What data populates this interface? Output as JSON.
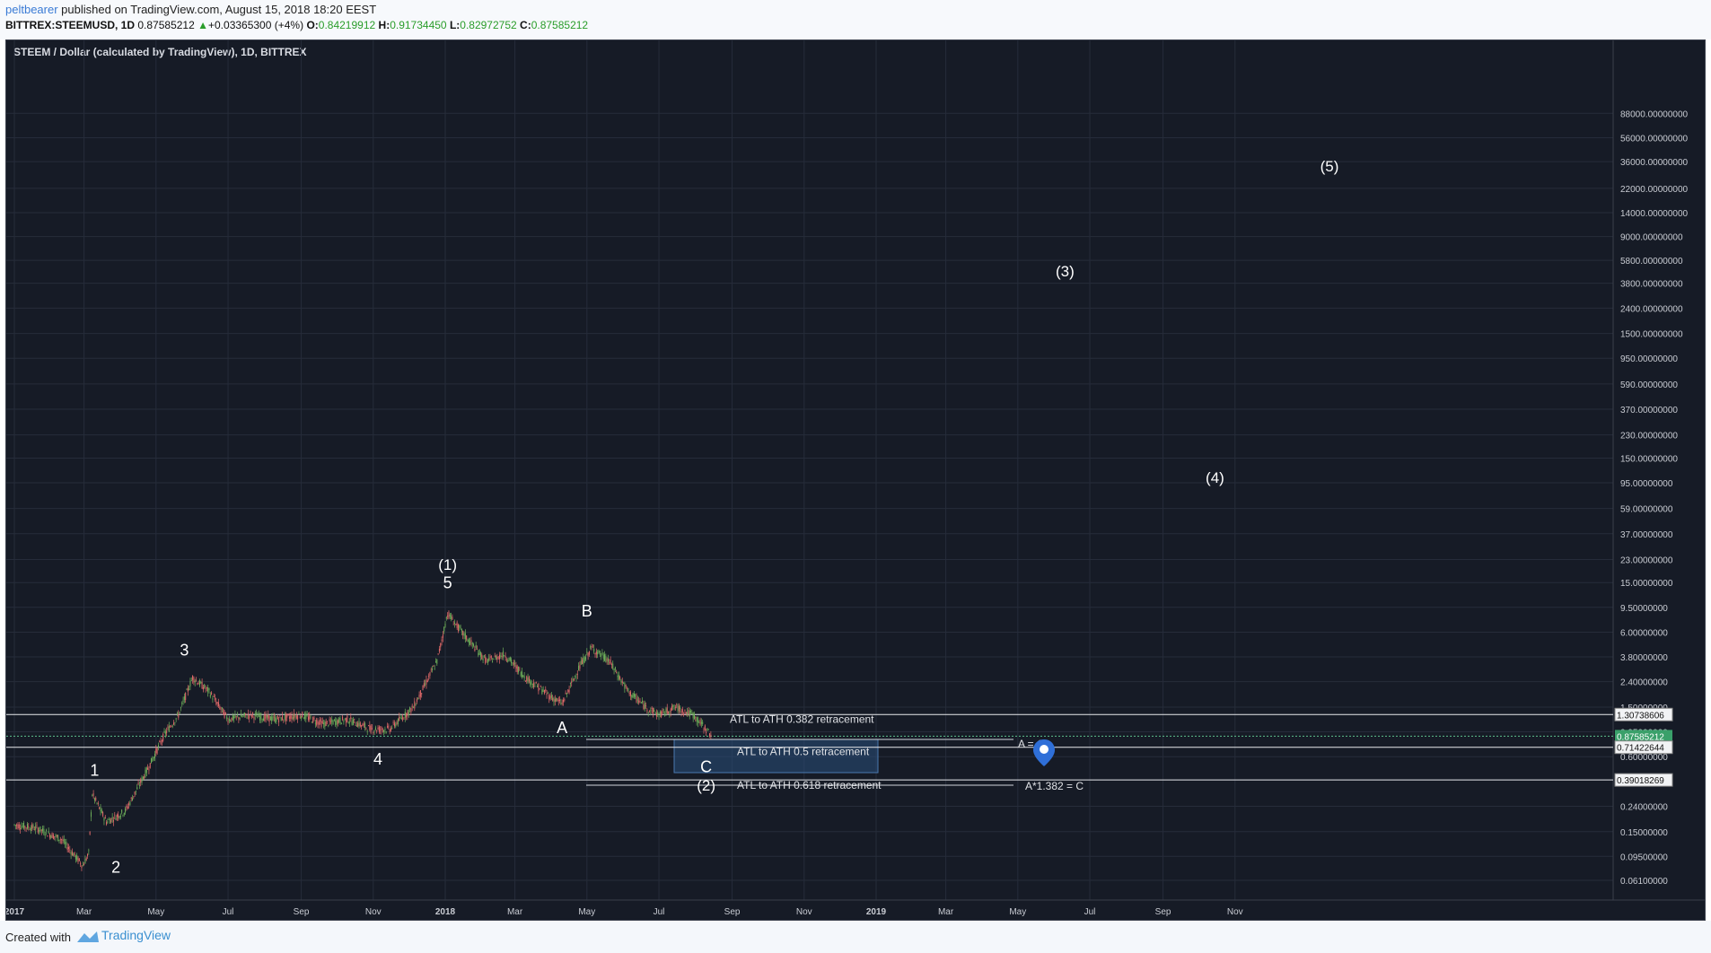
{
  "header": {
    "user": "peltbearer",
    "published": "published on TradingView.com, August 15, 2018 18:20 EEST",
    "symbol": "BITTREX:STEEMUSD, 1D",
    "last": "0.87585212",
    "change_arrow": "▲",
    "change": "+0.03365300 (+4%)",
    "o_label": "O:",
    "o": "0.84219912",
    "h_label": "H:",
    "h": "0.91734450",
    "l_label": "L:",
    "l": "0.82972752",
    "c_label": "C:",
    "c": "0.87585212"
  },
  "footer": {
    "created": "Created with",
    "brand": "TradingView"
  },
  "colors": {
    "bg": "#161b26",
    "up": "#6fb05a",
    "down": "#e26a6a",
    "grid": "#262c3a",
    "accent": "#3e7bd9"
  },
  "chart_data": {
    "type": "candlestick",
    "title": "STEEM / Dollar (calculated by TradingView), 1D, BITTREX",
    "scale": "log",
    "ylim": [
      0.05,
      90000
    ],
    "y_ticks": [
      "88000.00000000",
      "56000.00000000",
      "36000.00000000",
      "22000.00000000",
      "14000.00000000",
      "9000.00000000",
      "5800.00000000",
      "3800.00000000",
      "2400.00000000",
      "1500.00000000",
      "950.00000000",
      "590.00000000",
      "370.00000000",
      "230.00000000",
      "150.00000000",
      "95.00000000",
      "59.00000000",
      "37.00000000",
      "23.00000000",
      "15.00000000",
      "9.50000000",
      "6.00000000",
      "3.80000000",
      "2.40000000",
      "1.50000000",
      "0.95000000",
      "0.60000000",
      "0.24000000",
      "0.15000000",
      "0.09500000",
      "0.06100000"
    ],
    "x_ticks": [
      "2017",
      "Mar",
      "May",
      "Jul",
      "Sep",
      "Nov",
      "2018",
      "Mar",
      "May",
      "Jul",
      "Sep",
      "Nov",
      "2019",
      "Mar",
      "May",
      "Jul",
      "Sep",
      "Nov"
    ],
    "price_series": {
      "name": "STEEMUSD",
      "points": [
        [
          "2017-01-01",
          0.17
        ],
        [
          "2017-01-20",
          0.16
        ],
        [
          "2017-02-10",
          0.13
        ],
        [
          "2017-02-28",
          0.08
        ],
        [
          "2017-03-05",
          0.1
        ],
        [
          "2017-03-08",
          0.3
        ],
        [
          "2017-03-20",
          0.18
        ],
        [
          "2017-04-05",
          0.22
        ],
        [
          "2017-04-25",
          0.5
        ],
        [
          "2017-05-08",
          0.9
        ],
        [
          "2017-05-20",
          1.3
        ],
        [
          "2017-06-01",
          2.6
        ],
        [
          "2017-06-15",
          2.0
        ],
        [
          "2017-07-01",
          1.2
        ],
        [
          "2017-07-20",
          1.3
        ],
        [
          "2017-08-10",
          1.2
        ],
        [
          "2017-09-01",
          1.3
        ],
        [
          "2017-09-20",
          1.1
        ],
        [
          "2017-10-10",
          1.2
        ],
        [
          "2017-10-30",
          1.0
        ],
        [
          "2017-11-15",
          1.0
        ],
        [
          "2017-12-05",
          1.5
        ],
        [
          "2017-12-25",
          3.5
        ],
        [
          "2018-01-03",
          8.5
        ],
        [
          "2018-01-15",
          6.0
        ],
        [
          "2018-02-05",
          3.5
        ],
        [
          "2018-02-20",
          4.0
        ],
        [
          "2018-03-10",
          2.6
        ],
        [
          "2018-04-01",
          1.8
        ],
        [
          "2018-04-10",
          1.6
        ],
        [
          "2018-04-25",
          3.2
        ],
        [
          "2018-05-05",
          4.5
        ],
        [
          "2018-05-20",
          3.5
        ],
        [
          "2018-06-05",
          2.0
        ],
        [
          "2018-06-20",
          1.5
        ],
        [
          "2018-07-01",
          1.3
        ],
        [
          "2018-07-15",
          1.5
        ],
        [
          "2018-07-30",
          1.3
        ],
        [
          "2018-08-15",
          0.88
        ]
      ]
    },
    "levels": [
      {
        "name": "ATL to ATH 0.382 retracement",
        "value": 1.30738606
      },
      {
        "name": "current",
        "value": 0.87585212
      },
      {
        "name": "ATL to ATH 0.5 retracement",
        "value": 0.71422644
      },
      {
        "name": "ATL to ATH 0.618 retracement",
        "value": 0.39018269
      }
    ],
    "level_labels": [
      "1.30738606",
      "0.87585212",
      "0.71422644",
      "0.39018269"
    ],
    "wave_labels": [
      {
        "text": "1",
        "x": "2017-03-10",
        "y": 0.42
      },
      {
        "text": "2",
        "x": "2017-03-28",
        "y": 0.07
      },
      {
        "text": "3",
        "x": "2017-05-25",
        "y": 3.9
      },
      {
        "text": "4",
        "x": "2017-11-05",
        "y": 0.52
      },
      {
        "text": "5",
        "x": "2018-01-03",
        "y": 13.5
      },
      {
        "text": "(1)",
        "x": "2018-01-03",
        "y": 19
      },
      {
        "text": "A",
        "x": "2018-04-10",
        "y": 0.93
      },
      {
        "text": "B",
        "x": "2018-05-01",
        "y": 8
      },
      {
        "text": "C",
        "x": "2018-08-10",
        "y": 0.45
      },
      {
        "text": "(2)",
        "x": "2018-08-10",
        "y": 0.32
      },
      {
        "text": "(3)",
        "x": "2019-06-10",
        "y": 4300
      },
      {
        "text": "(4)",
        "x": "2019-10-15",
        "y": 95
      },
      {
        "text": "(5)",
        "x": "2020-01-20",
        "y": 30000
      }
    ],
    "annotations": [
      "A = C",
      "A*1.382 = C"
    ]
  }
}
